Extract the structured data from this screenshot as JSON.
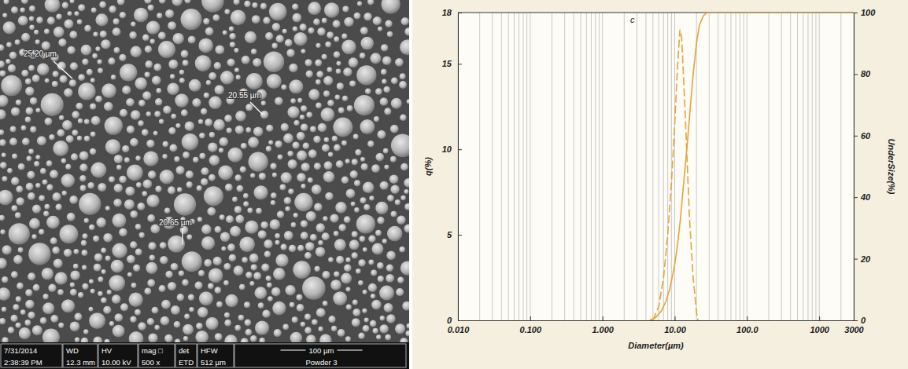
{
  "micrograph": {
    "measurements": [
      "25.20 µm",
      "20.55 µm",
      "20.65 µm"
    ],
    "scale_bar": "100 µm",
    "info_bar": {
      "row1": [
        "7/31/2014",
        "WD",
        "HV",
        "mag □",
        "det",
        "HFW"
      ],
      "row2": [
        "2:38:39 PM",
        "12.3 mm",
        "10.00 kV",
        "500 x",
        "ETD",
        "512 µm",
        "Powder 3"
      ]
    }
  },
  "chart_data": {
    "type": "line",
    "x_label": "Diameter(µm)",
    "y_label": "q(%)",
    "y2_label": "UnderSize(%)",
    "annotations": [
      {
        "text": "c",
        "x": 2.6,
        "y": 17.4
      }
    ],
    "log": "x",
    "grid": true,
    "xlim": [
      0.01,
      3000
    ],
    "xticks": [
      {
        "value": 0.01,
        "label": "0.010"
      },
      {
        "value": 0.1,
        "label": "0.100"
      },
      {
        "value": 1,
        "label": "1.000"
      },
      {
        "value": 10,
        "label": "10.00"
      },
      {
        "value": 100,
        "label": "100.0"
      },
      1000,
      3000
    ],
    "xgrid": [
      0.01,
      0.02,
      0.03,
      0.04,
      0.05,
      0.06,
      0.07,
      0.08,
      0.09,
      0.1,
      0.2,
      0.3,
      0.4,
      0.5,
      0.6,
      0.7,
      0.8,
      0.9,
      1,
      2,
      3,
      4,
      5,
      6,
      7,
      8,
      9,
      10,
      20,
      30,
      40,
      50,
      60,
      70,
      80,
      90,
      100,
      200,
      300,
      400,
      500,
      600,
      700,
      800,
      900,
      1000,
      2000,
      3000
    ],
    "ylim": [
      0,
      18
    ],
    "yticks": [
      0,
      5,
      10,
      15,
      18
    ],
    "y2lim": [
      0,
      100
    ],
    "y2ticks": [
      0,
      20,
      40,
      60,
      80,
      100
    ],
    "series": [
      {
        "color": "#e8a23a",
        "line_style": "dashed",
        "x": [
          5.0,
          6.0,
          7.0,
          8.0,
          9.0,
          10.0,
          11.0,
          11.8,
          12.5,
          14.0,
          16.0,
          18.0,
          20.0,
          21.0
        ],
        "values": [
          0,
          0.8,
          2.5,
          5.0,
          8.0,
          11.5,
          15.0,
          17.0,
          16.5,
          12.0,
          6.0,
          2.5,
          0.5,
          0
        ]
      },
      {
        "color": "#e8a23a",
        "line_style": "solid",
        "axis": "y2",
        "x": [
          4.5,
          5.5,
          6.5,
          7.5,
          8.5,
          10,
          11,
          12,
          13,
          14,
          15,
          16,
          18,
          20,
          22,
          25,
          28,
          3000
        ],
        "values": [
          0,
          1,
          3,
          6,
          10,
          18,
          25,
          33,
          42,
          50,
          58,
          66,
          80,
          90,
          96,
          99,
          100,
          100
        ]
      }
    ]
  }
}
